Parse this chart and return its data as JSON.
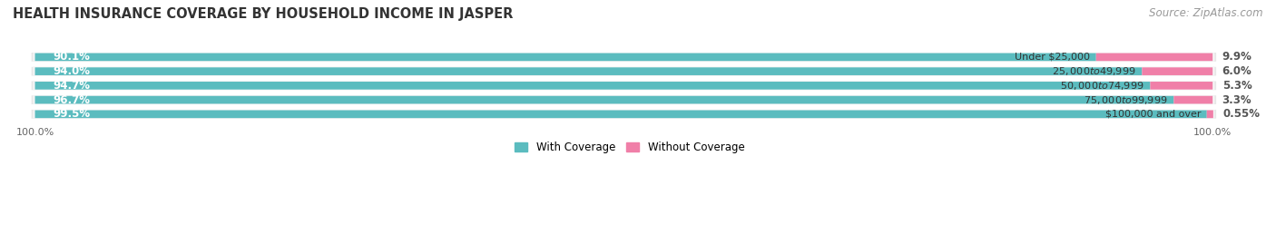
{
  "title": "HEALTH INSURANCE COVERAGE BY HOUSEHOLD INCOME IN JASPER",
  "source": "Source: ZipAtlas.com",
  "categories": [
    "Under $25,000",
    "$25,000 to $49,999",
    "$50,000 to $74,999",
    "$75,000 to $99,999",
    "$100,000 and over"
  ],
  "with_coverage": [
    90.1,
    94.0,
    94.7,
    96.7,
    99.5
  ],
  "without_coverage": [
    9.9,
    6.0,
    5.3,
    3.3,
    0.55
  ],
  "with_coverage_color": "#5bbcbf",
  "without_coverage_color": "#f07fa8",
  "row_bg_color": "#e8e8e8",
  "row_inner_bg": "#f7f7f7",
  "label_color_with": "#ffffff",
  "label_color_without": "#555555",
  "category_label_color": "#333333",
  "title_color": "#333333",
  "source_color": "#999999",
  "title_fontsize": 10.5,
  "source_fontsize": 8.5,
  "bar_label_fontsize": 8.5,
  "category_fontsize": 8.0,
  "legend_fontsize": 8.5,
  "axis_label_fontsize": 8.0,
  "x_left_label": "100.0%",
  "x_right_label": "100.0%"
}
